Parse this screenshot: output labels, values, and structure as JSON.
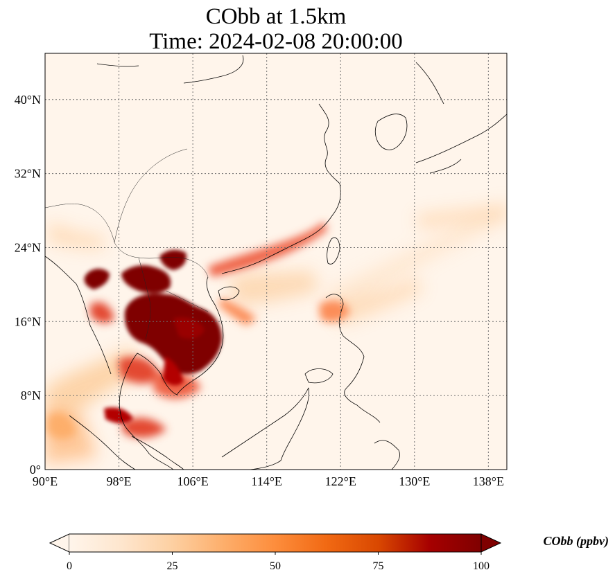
{
  "title_line1": "CObb at 1.5km",
  "title_line2": "Time: 2024-02-08 20:00:00",
  "map": {
    "lon_range": [
      90,
      140
    ],
    "lat_range": [
      0,
      45
    ],
    "lon_ticks": [
      "90°E",
      "98°E",
      "106°E",
      "114°E",
      "122°E",
      "130°E",
      "138°E"
    ],
    "lon_tick_values": [
      90,
      98,
      106,
      114,
      122,
      130,
      138
    ],
    "lat_ticks": [
      "0°",
      "8°N",
      "16°N",
      "24°N",
      "32°N",
      "40°N"
    ],
    "lat_tick_values": [
      0,
      8,
      16,
      24,
      32,
      40
    ],
    "gridlines": true,
    "background_color": "#fff5eb"
  },
  "colorbar": {
    "label": "CObb (ppbv)",
    "tick_labels": [
      "0",
      "25",
      "50",
      "75",
      "100"
    ],
    "tick_values": [
      0,
      25,
      50,
      75,
      100
    ],
    "range": [
      0,
      100
    ],
    "extend": "both",
    "colormap": "OrRd",
    "stops": [
      "#fff5eb",
      "#fee6ce",
      "#fdd0a2",
      "#fdae6b",
      "#fd8d3c",
      "#f16913",
      "#d94801",
      "#a60000",
      "#7f0000"
    ]
  }
}
